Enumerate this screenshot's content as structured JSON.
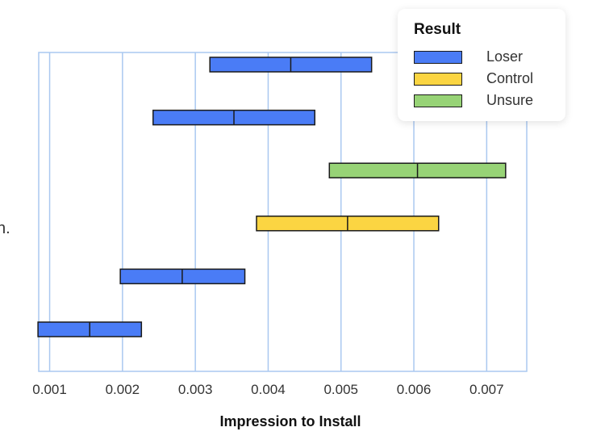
{
  "side_text": "n.",
  "chart_data": {
    "type": "range",
    "xlabel": "Impression to Install",
    "ylabel": "",
    "xlim": [
      0.00085,
      0.00755
    ],
    "xticks": [
      "0.001",
      "0.002",
      "0.003",
      "0.004",
      "0.005",
      "0.006",
      "0.007"
    ],
    "tick_values": [
      0.001,
      0.002,
      0.003,
      0.004,
      0.005,
      0.006,
      0.007
    ],
    "grid": true,
    "legend": {
      "title": "Result",
      "placement": "top-right",
      "entries": [
        {
          "label": "Loser",
          "color": "#4a7cf6"
        },
        {
          "label": "Control",
          "color": "#fbd542"
        },
        {
          "label": "Unsure",
          "color": "#97d376"
        }
      ]
    },
    "rows": [
      {
        "low": 0.0032,
        "mid": 0.00431,
        "high": 0.00542,
        "result": "Loser"
      },
      {
        "low": 0.00242,
        "mid": 0.00353,
        "high": 0.00464,
        "result": "Loser"
      },
      {
        "low": 0.00484,
        "mid": 0.00605,
        "high": 0.00726,
        "result": "Unsure"
      },
      {
        "low": 0.00384,
        "mid": 0.00509,
        "high": 0.00634,
        "result": "Control"
      },
      {
        "low": 0.00197,
        "mid": 0.00282,
        "high": 0.00368,
        "result": "Loser"
      },
      {
        "low": 0.00084,
        "mid": 0.00155,
        "high": 0.00226,
        "result": "Loser"
      }
    ]
  }
}
